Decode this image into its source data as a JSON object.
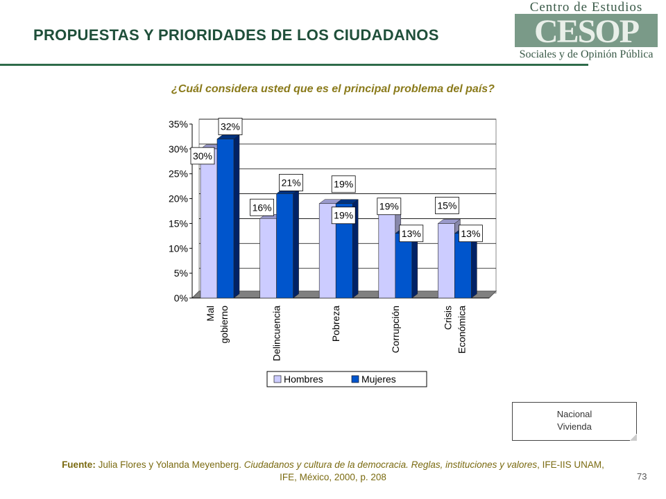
{
  "header": {
    "title": "PROPUESTAS Y PRIORIDADES DE LOS CIUDADANOS"
  },
  "logo": {
    "top": "Centro de Estudios",
    "mark": "CESOP",
    "bottom": "Sociales y de Opinión Pública"
  },
  "question": "¿Cuál considera usted que es el principal problema del país?",
  "chart_data": {
    "type": "bar",
    "categories": [
      "Mal gobierno",
      "Delincuencia",
      "Pobreza",
      "Corrupción",
      "Crisis Económica"
    ],
    "category_lines": [
      [
        "Mal",
        "gobierno"
      ],
      [
        "Delincuencia"
      ],
      [
        "Pobreza"
      ],
      [
        "Corrupción"
      ],
      [
        "Crisis",
        "Económica"
      ]
    ],
    "series": [
      {
        "name": "Hombres",
        "values": [
          30,
          16,
          19,
          19,
          15
        ],
        "color": "#ccccff"
      },
      {
        "name": "Mujeres",
        "values": [
          32,
          21,
          19,
          13,
          13
        ],
        "color": "#0055cc"
      }
    ],
    "data_labels": [
      [
        "30%",
        "16%",
        "19%",
        "19%",
        "15%"
      ],
      [
        "32%",
        "21%",
        "19%",
        "13%",
        "13%"
      ]
    ],
    "ylim": [
      0,
      35
    ],
    "yticks": [
      "0%",
      "5%",
      "10%",
      "15%",
      "20%",
      "25%",
      "30%",
      "35%"
    ],
    "grid": true,
    "legend_position": "bottom"
  },
  "note_box": {
    "line1": "Nacional",
    "line2": "Vivienda"
  },
  "source": {
    "label": "Fuente:",
    "authors": " Julia Flores y Yolanda Meyenberg. ",
    "work": "Ciudadanos y cultura de la democracia. Reglas, instituciones y valores",
    "rest": ", IFE-IIS UNAM, IFE, México, 2000, p. 208"
  },
  "page_number": "73"
}
